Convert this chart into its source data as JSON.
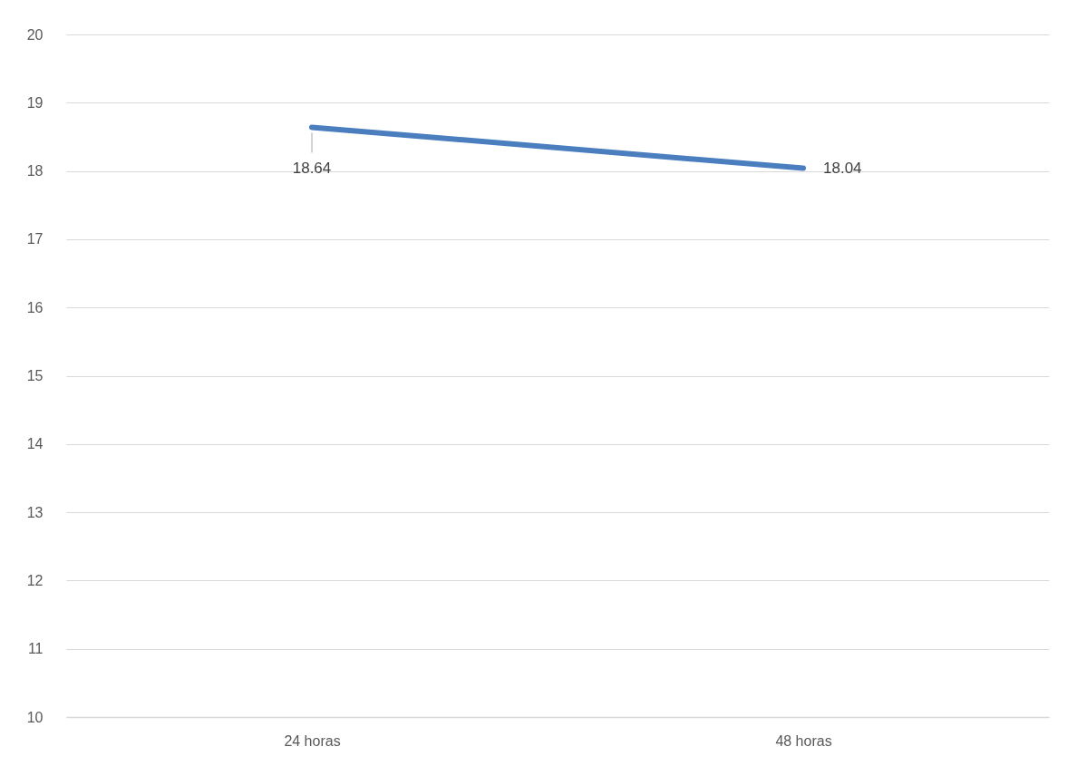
{
  "chart_data": {
    "type": "line",
    "categories": [
      "24 horas",
      "48 horas"
    ],
    "series": [
      {
        "color": "#4a7ebf",
        "values": [
          18.64,
          18.04
        ]
      }
    ],
    "ylim": [
      10,
      20
    ],
    "yticks": [
      10,
      11,
      12,
      13,
      14,
      15,
      16,
      17,
      18,
      19,
      20
    ],
    "grid": "y",
    "data_labels": true,
    "marker": "none",
    "line_style": "solid"
  }
}
